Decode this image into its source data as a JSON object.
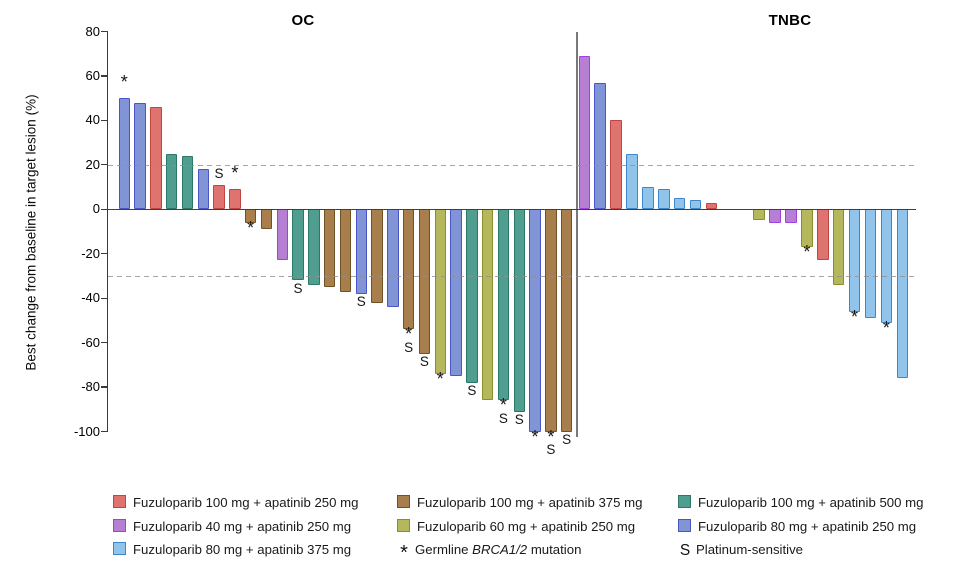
{
  "chart_data": {
    "type": "bar",
    "ylabel": "Best change from baseline in target lesion (%)",
    "ylim": [
      -100,
      80
    ],
    "yticks": [
      80,
      60,
      40,
      20,
      0,
      -20,
      -40,
      -60,
      -80,
      -100
    ],
    "reference_lines": [
      20,
      -30
    ],
    "grid": "off",
    "markers": {
      "star": "*",
      "s": "S"
    },
    "series": {
      "fuzu100_apa250": {
        "label": "Fuzuloparib 100 mg + apatinib 250 mg",
        "fill": "#DE7370",
        "border": "#C14541"
      },
      "fuzu100_apa375": {
        "label": "Fuzuloparib 100 mg + apatinib 375 mg",
        "fill": "#A87E4D",
        "border": "#6F5324"
      },
      "fuzu100_apa500": {
        "label": "Fuzuloparib 100 mg + apatinib 500 mg",
        "fill": "#4F9E8F",
        "border": "#2C7866"
      },
      "fuzu40_apa250": {
        "label": "Fuzuloparib 40 mg + apatinib 250 mg",
        "fill": "#B77FD3",
        "border": "#A13FE0"
      },
      "fuzu60_apa250": {
        "label": "Fuzuloparib 60 mg + apatinib 250 mg",
        "fill": "#B4B75C",
        "border": "#8A8D2A"
      },
      "fuzu80_apa250": {
        "label": "Fuzuloparib 80 mg + apatinib 250 mg",
        "fill": "#8094D6",
        "border": "#4C55C6"
      },
      "fuzu80_apa375": {
        "label": "Fuzuloparib 80 mg + apatinib 375 mg",
        "fill": "#90C4EA",
        "border": "#3E87C9"
      }
    },
    "panels": [
      {
        "name": "OC",
        "bars": [
          {
            "slot": 0,
            "value": 50,
            "series": "fuzu80_apa250",
            "mark": "star"
          },
          {
            "slot": 1,
            "value": 48,
            "series": "fuzu80_apa250"
          },
          {
            "slot": 2,
            "value": 46,
            "series": "fuzu100_apa250"
          },
          {
            "slot": 3,
            "value": 25,
            "series": "fuzu100_apa500"
          },
          {
            "slot": 4,
            "value": 24,
            "series": "fuzu100_apa500"
          },
          {
            "slot": 5,
            "value": 18,
            "series": "fuzu80_apa250"
          },
          {
            "slot": 6,
            "value": 11,
            "series": "fuzu100_apa250",
            "mark": "s"
          },
          {
            "slot": 7,
            "value": 9,
            "series": "fuzu100_apa250",
            "mark": "star"
          },
          {
            "slot": 8,
            "value": -6,
            "series": "fuzu100_apa375",
            "mark": "star"
          },
          {
            "slot": 9,
            "value": -9,
            "series": "fuzu100_apa375"
          },
          {
            "slot": 10,
            "value": -23,
            "series": "fuzu40_apa250"
          },
          {
            "slot": 11,
            "value": -32,
            "series": "fuzu100_apa500",
            "mark": "s"
          },
          {
            "slot": 12,
            "value": -34,
            "series": "fuzu100_apa500"
          },
          {
            "slot": 13,
            "value": -35,
            "series": "fuzu100_apa375"
          },
          {
            "slot": 14,
            "value": -37,
            "series": "fuzu100_apa375"
          },
          {
            "slot": 15,
            "value": -38,
            "series": "fuzu80_apa250",
            "mark": "s"
          },
          {
            "slot": 16,
            "value": -42,
            "series": "fuzu100_apa375"
          },
          {
            "slot": 17,
            "value": -44,
            "series": "fuzu80_apa250"
          },
          {
            "slot": 18,
            "value": -54,
            "series": "fuzu100_apa375",
            "mark": "star_s"
          },
          {
            "slot": 19,
            "value": -65,
            "series": "fuzu100_apa375",
            "mark": "s"
          },
          {
            "slot": 20,
            "value": -74,
            "series": "fuzu60_apa250",
            "mark": "star"
          },
          {
            "slot": 21,
            "value": -75,
            "series": "fuzu80_apa250"
          },
          {
            "slot": 22,
            "value": -78,
            "series": "fuzu100_apa500",
            "mark": "s"
          },
          {
            "slot": 23,
            "value": -86,
            "series": "fuzu60_apa250"
          },
          {
            "slot": 24,
            "value": -86,
            "series": "fuzu100_apa500",
            "mark": "star_s"
          },
          {
            "slot": 25,
            "value": -91,
            "series": "fuzu100_apa500",
            "mark": "s"
          },
          {
            "slot": 26,
            "value": -100,
            "series": "fuzu80_apa250",
            "mark": "star"
          },
          {
            "slot": 27,
            "value": -100,
            "series": "fuzu100_apa375",
            "mark": "star_s"
          },
          {
            "slot": 28,
            "value": -100,
            "series": "fuzu100_apa375",
            "mark": "s"
          }
        ]
      },
      {
        "name": "TNBC",
        "bars": [
          {
            "slot": 0,
            "value": 69,
            "series": "fuzu40_apa250"
          },
          {
            "slot": 1,
            "value": 57,
            "series": "fuzu80_apa250"
          },
          {
            "slot": 2,
            "value": 40,
            "series": "fuzu100_apa250"
          },
          {
            "slot": 3,
            "value": 25,
            "series": "fuzu80_apa375"
          },
          {
            "slot": 4,
            "value": 10,
            "series": "fuzu80_apa375"
          },
          {
            "slot": 5,
            "value": 9,
            "series": "fuzu80_apa375"
          },
          {
            "slot": 6,
            "value": 5,
            "series": "fuzu80_apa375"
          },
          {
            "slot": 7,
            "value": 4,
            "series": "fuzu80_apa375"
          },
          {
            "slot": 8,
            "value": 3,
            "series": "fuzu100_apa250"
          },
          {
            "slot": 11,
            "value": -5,
            "series": "fuzu60_apa250"
          },
          {
            "slot": 12,
            "value": -6,
            "series": "fuzu40_apa250"
          },
          {
            "slot": 13,
            "value": -6,
            "series": "fuzu40_apa250"
          },
          {
            "slot": 14,
            "value": -17,
            "series": "fuzu60_apa250",
            "mark": "star"
          },
          {
            "slot": 15,
            "value": -23,
            "series": "fuzu100_apa250"
          },
          {
            "slot": 16,
            "value": -34,
            "series": "fuzu60_apa250"
          },
          {
            "slot": 17,
            "value": -46,
            "series": "fuzu80_apa375",
            "mark": "star"
          },
          {
            "slot": 18,
            "value": -49,
            "series": "fuzu80_apa375"
          },
          {
            "slot": 19,
            "value": -51,
            "series": "fuzu80_apa375",
            "mark": "star"
          },
          {
            "slot": 20,
            "value": -76,
            "series": "fuzu80_apa375"
          }
        ]
      }
    ],
    "legend": {
      "rows": [
        [
          {
            "type": "swatch",
            "series": "fuzu100_apa250"
          },
          {
            "type": "swatch",
            "series": "fuzu100_apa375"
          },
          {
            "type": "swatch",
            "series": "fuzu100_apa500"
          }
        ],
        [
          {
            "type": "swatch",
            "series": "fuzu40_apa250"
          },
          {
            "type": "swatch",
            "series": "fuzu60_apa250"
          },
          {
            "type": "swatch",
            "series": "fuzu80_apa250"
          }
        ],
        [
          {
            "type": "swatch",
            "series": "fuzu80_apa375"
          },
          {
            "type": "symbol",
            "symbol": "star",
            "prefix": "Germline ",
            "italic": "BRCA1/2",
            "suffix": " mutation"
          },
          {
            "type": "symbol",
            "symbol": "s",
            "label": "Platinum-sensitive"
          }
        ]
      ]
    }
  }
}
